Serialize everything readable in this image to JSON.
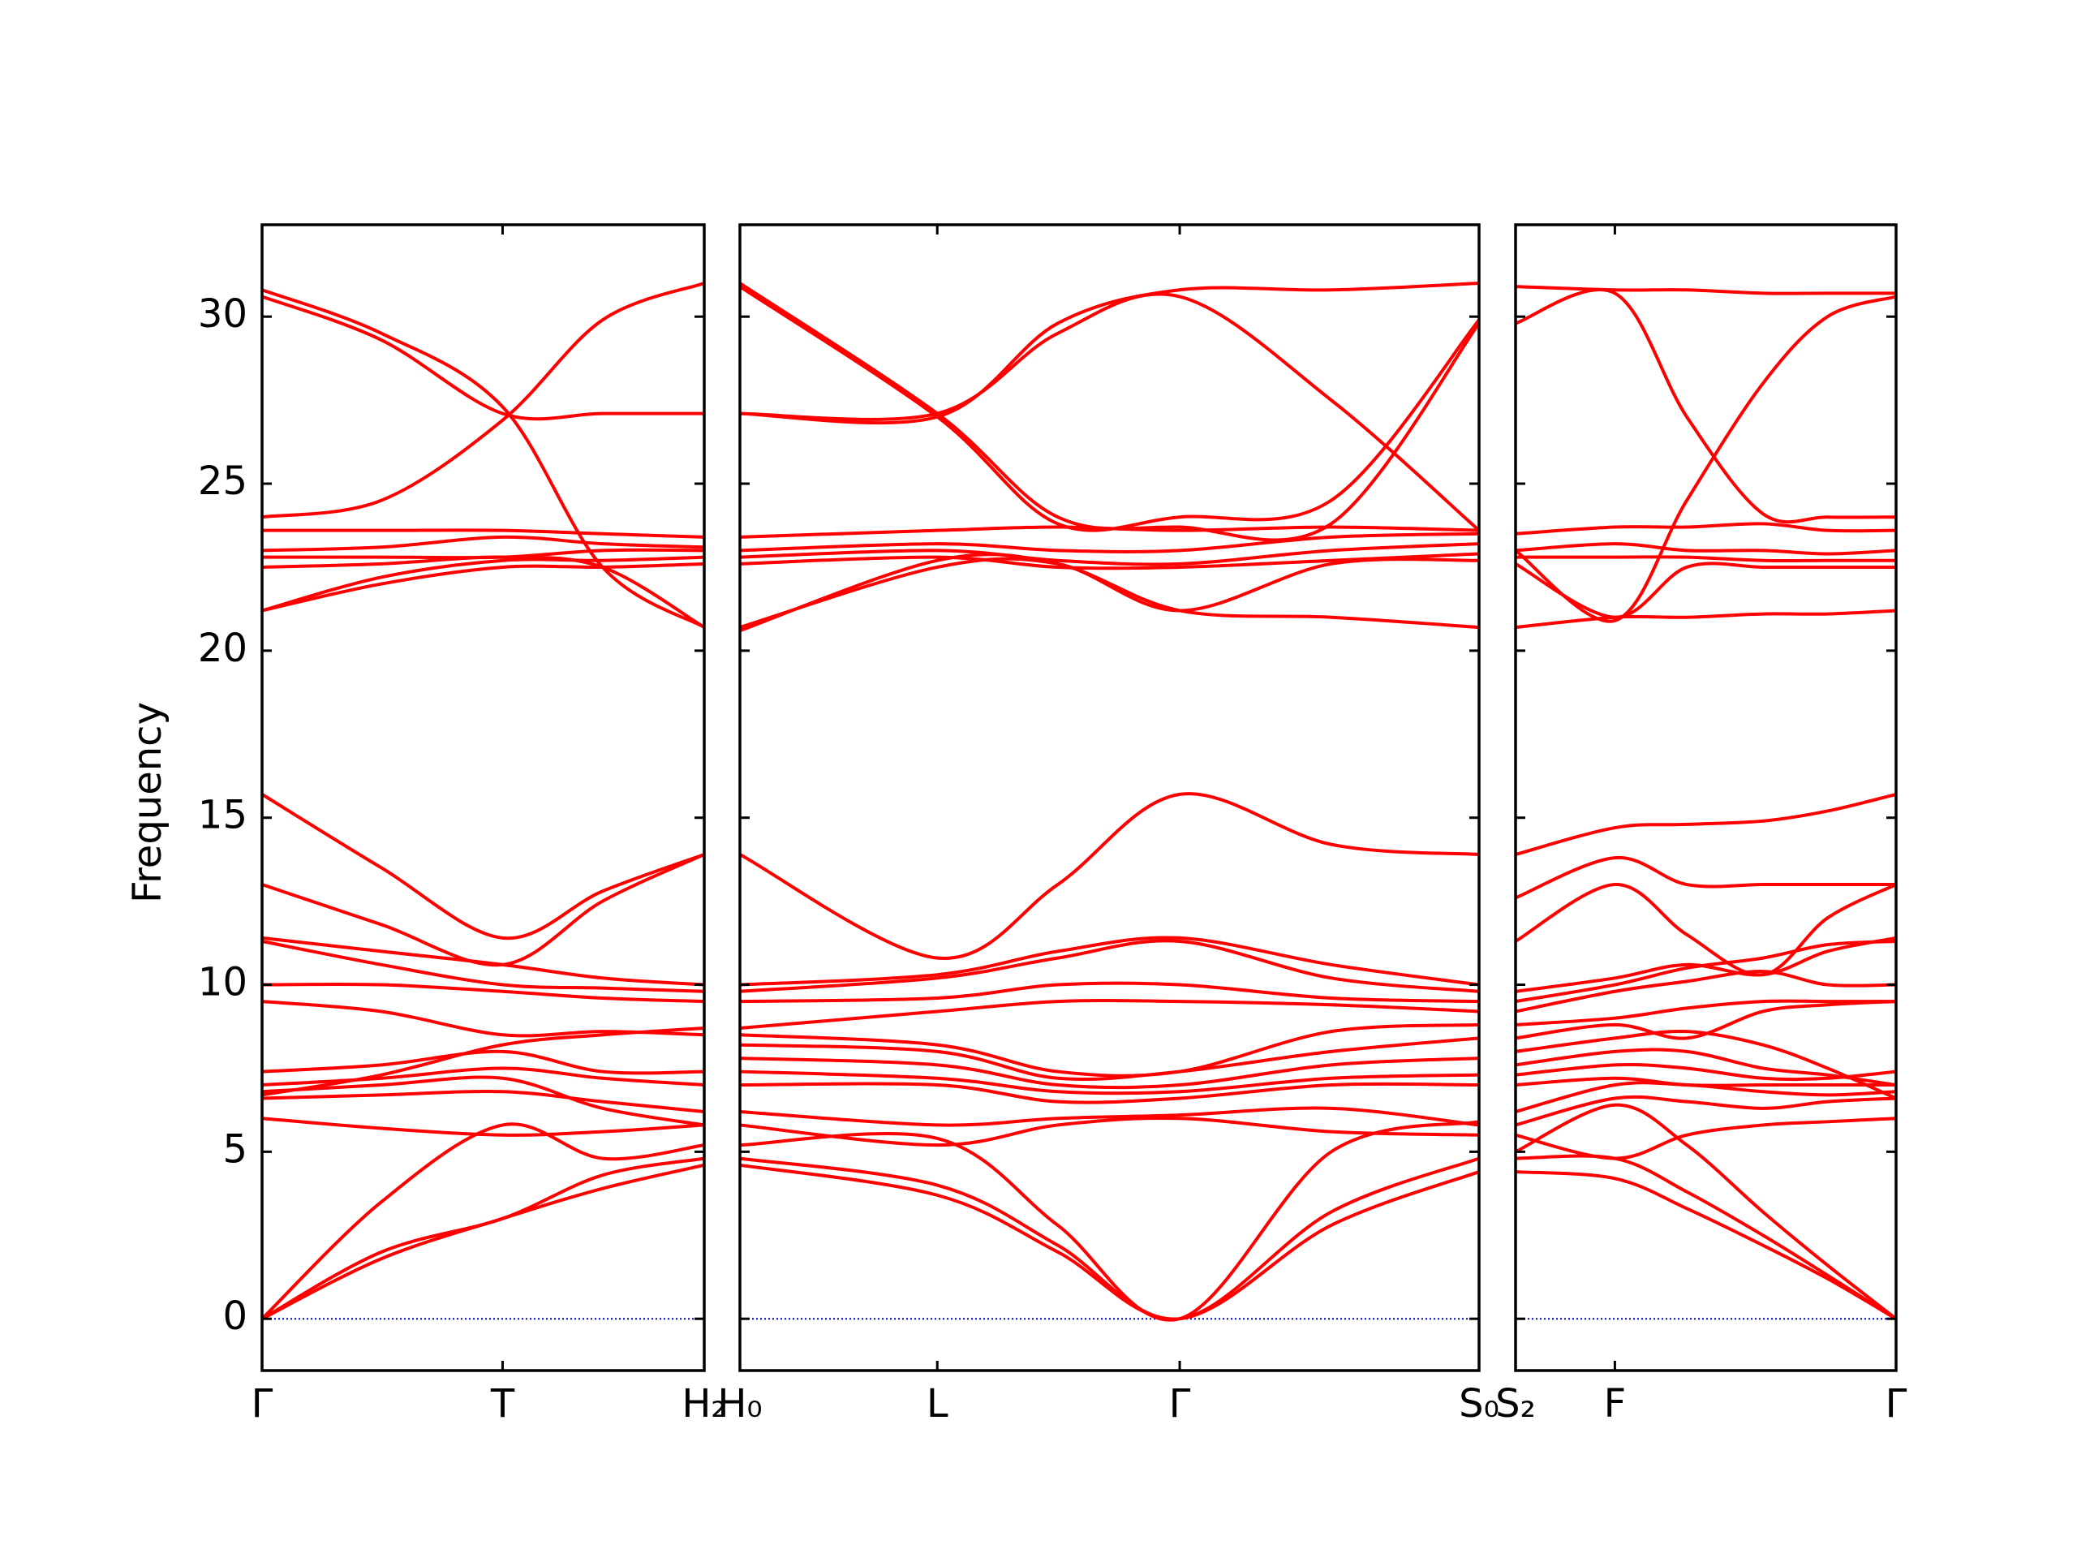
{
  "chart_data": [
    {
      "type": "line",
      "ylabel": "Frequency",
      "color": "#ff0000",
      "zero_line_color": "#0000cc",
      "xlim": [
        0,
        1
      ],
      "xticks": [
        {
          "value": 0,
          "label": "Γ"
        },
        {
          "value": 0.544,
          "label": "T"
        },
        {
          "value": 1,
          "label": "H₂"
        }
      ],
      "ylim": [
        -1.55,
        32.75
      ],
      "yticks": [
        0,
        5,
        10,
        15,
        20,
        25,
        30
      ],
      "x": [
        0,
        0.27,
        0.544,
        0.77,
        1
      ],
      "series": [
        {
          "values": [
            0,
            1.8,
            3.0,
            3.9,
            4.6
          ]
        },
        {
          "values": [
            0,
            2.0,
            3.0,
            4.3,
            4.8
          ]
        },
        {
          "values": [
            0,
            3.5,
            5.8,
            4.8,
            5.2
          ]
        },
        {
          "values": [
            6.0,
            5.7,
            5.5,
            5.6,
            5.8
          ]
        },
        {
          "values": [
            6.6,
            6.7,
            6.8,
            6.5,
            6.2
          ]
        },
        {
          "values": [
            6.8,
            7.0,
            7.2,
            6.3,
            5.8
          ]
        },
        {
          "values": [
            7.0,
            7.2,
            7.5,
            7.2,
            7.0
          ]
        },
        {
          "values": [
            7.4,
            7.6,
            8.0,
            7.4,
            7.4
          ]
        },
        {
          "values": [
            6.7,
            7.3,
            8.2,
            8.5,
            8.7
          ]
        },
        {
          "values": [
            9.5,
            9.2,
            8.5,
            8.6,
            8.5
          ]
        },
        {
          "values": [
            10.0,
            10.0,
            9.8,
            9.6,
            9.5
          ]
        },
        {
          "values": [
            11.3,
            10.6,
            10.0,
            9.9,
            9.8
          ]
        },
        {
          "values": [
            11.4,
            11.0,
            10.6,
            10.2,
            10.0
          ]
        },
        {
          "values": [
            13.0,
            11.8,
            10.6,
            12.5,
            13.9
          ]
        },
        {
          "values": [
            15.7,
            13.5,
            11.4,
            12.8,
            13.9
          ]
        },
        {
          "values": [
            21.2,
            22.0,
            22.5,
            22.5,
            22.6
          ]
        },
        {
          "values": [
            21.2,
            22.2,
            22.7,
            22.7,
            22.8
          ]
        },
        {
          "values": [
            22.5,
            22.6,
            22.8,
            22.5,
            20.7
          ]
        },
        {
          "values": [
            22.8,
            22.8,
            22.8,
            23.0,
            23.0
          ]
        },
        {
          "values": [
            23.0,
            23.1,
            23.4,
            23.2,
            23.1
          ]
        },
        {
          "values": [
            23.6,
            23.6,
            23.6,
            23.5,
            23.4
          ]
        },
        {
          "values": [
            24.0,
            24.5,
            26.9,
            29.9,
            31.0
          ]
        },
        {
          "values": [
            30.8,
            29.5,
            27.3,
            22.5,
            20.7
          ]
        },
        {
          "values": [
            30.6,
            29.3,
            27.1,
            27.1,
            27.1
          ]
        }
      ]
    },
    {
      "type": "line",
      "color": "#ff0000",
      "zero_line_color": "#0000cc",
      "xlim": [
        0,
        1
      ],
      "xticks": [
        {
          "value": 0,
          "label": "H₀"
        },
        {
          "value": 0.267,
          "label": "L"
        },
        {
          "value": 0.595,
          "label": "Γ"
        },
        {
          "value": 1,
          "label": "S₀"
        }
      ],
      "ylim": [
        -1.55,
        32.75
      ],
      "x": [
        0,
        0.267,
        0.43,
        0.595,
        0.8,
        1
      ],
      "series": [
        {
          "values": [
            4.6,
            3.7,
            2.0,
            0,
            2.8,
            4.4
          ]
        },
        {
          "values": [
            4.8,
            4.0,
            2.2,
            0,
            3.2,
            4.8
          ]
        },
        {
          "values": [
            5.2,
            5.4,
            2.8,
            0,
            5.0,
            5.9
          ]
        },
        {
          "values": [
            5.8,
            5.2,
            5.8,
            6.0,
            5.6,
            5.5
          ]
        },
        {
          "values": [
            6.2,
            5.8,
            6.0,
            6.1,
            6.3,
            5.8
          ]
        },
        {
          "values": [
            7.0,
            7.0,
            6.5,
            6.6,
            7.0,
            7.0
          ]
        },
        {
          "values": [
            7.4,
            7.2,
            6.8,
            6.8,
            7.2,
            7.3
          ]
        },
        {
          "values": [
            7.8,
            7.6,
            7.0,
            7.0,
            7.6,
            7.8
          ]
        },
        {
          "values": [
            8.2,
            8.0,
            7.2,
            7.4,
            8.0,
            8.4
          ]
        },
        {
          "values": [
            8.5,
            8.2,
            7.4,
            7.4,
            8.6,
            8.8
          ]
        },
        {
          "values": [
            8.7,
            9.2,
            9.5,
            9.5,
            9.4,
            9.2
          ]
        },
        {
          "values": [
            9.5,
            9.6,
            10.0,
            10.0,
            9.6,
            9.5
          ]
        },
        {
          "values": [
            9.8,
            10.2,
            10.8,
            11.3,
            10.2,
            9.8
          ]
        },
        {
          "values": [
            10.0,
            10.3,
            11.0,
            11.4,
            10.6,
            10.0
          ]
        },
        {
          "values": [
            13.9,
            10.8,
            13.0,
            15.7,
            14.2,
            13.9
          ]
        },
        {
          "values": [
            20.7,
            22.5,
            22.6,
            21.2,
            22.6,
            22.7
          ]
        },
        {
          "values": [
            20.6,
            22.7,
            22.6,
            21.2,
            21.0,
            20.7
          ]
        },
        {
          "values": [
            22.6,
            22.8,
            22.5,
            22.5,
            22.7,
            22.9
          ]
        },
        {
          "values": [
            22.8,
            23.0,
            22.7,
            22.6,
            23.0,
            23.2
          ]
        },
        {
          "values": [
            23.0,
            23.2,
            23.0,
            23.0,
            23.4,
            23.5
          ]
        },
        {
          "values": [
            23.4,
            23.6,
            23.7,
            23.6,
            23.7,
            23.6
          ]
        },
        {
          "values": [
            31.0,
            27.1,
            24.0,
            23.7,
            23.8,
            29.8
          ]
        },
        {
          "values": [
            30.9,
            27.0,
            23.8,
            24.0,
            24.5,
            29.9
          ]
        },
        {
          "values": [
            27.1,
            27.1,
            29.5,
            30.6,
            27.5,
            23.6
          ]
        },
        {
          "values": [
            27.1,
            27.0,
            29.8,
            30.8,
            30.8,
            31.0
          ]
        }
      ]
    },
    {
      "type": "line",
      "color": "#ff0000",
      "zero_line_color": "#0000cc",
      "xlim": [
        0,
        1
      ],
      "xticks": [
        {
          "value": 0,
          "label": "S₂"
        },
        {
          "value": 0.261,
          "label": "F"
        },
        {
          "value": 1,
          "label": "Γ"
        }
      ],
      "ylim": [
        -1.55,
        32.75
      ],
      "x": [
        0,
        0.261,
        0.45,
        0.65,
        0.82,
        1
      ],
      "series": [
        {
          "values": [
            4.4,
            4.2,
            3.3,
            2.2,
            1.2,
            0
          ]
        },
        {
          "values": [
            4.8,
            4.8,
            3.8,
            2.5,
            1.3,
            0
          ]
        },
        {
          "values": [
            5.0,
            6.4,
            5.2,
            3.2,
            1.6,
            0
          ]
        },
        {
          "values": [
            5.5,
            4.8,
            5.5,
            5.8,
            5.9,
            6.0
          ]
        },
        {
          "values": [
            5.8,
            6.6,
            6.5,
            6.3,
            6.5,
            6.6
          ]
        },
        {
          "values": [
            6.2,
            7.0,
            7.0,
            6.8,
            6.7,
            6.8
          ]
        },
        {
          "values": [
            7.0,
            7.2,
            7.0,
            7.0,
            7.0,
            7.0
          ]
        },
        {
          "values": [
            7.3,
            7.6,
            7.5,
            7.2,
            7.2,
            7.4
          ]
        },
        {
          "values": [
            7.6,
            8.0,
            8.0,
            7.5,
            7.3,
            7.0
          ]
        },
        {
          "values": [
            8.0,
            8.4,
            8.6,
            8.2,
            7.5,
            6.6
          ]
        },
        {
          "values": [
            8.4,
            8.8,
            8.4,
            9.2,
            9.4,
            9.5
          ]
        },
        {
          "values": [
            8.8,
            9.0,
            9.3,
            9.5,
            9.5,
            9.5
          ]
        },
        {
          "values": [
            9.2,
            9.8,
            10.1,
            10.4,
            10.0,
            10.0
          ]
        },
        {
          "values": [
            9.5,
            10.0,
            10.5,
            10.8,
            11.2,
            11.3
          ]
        },
        {
          "values": [
            9.8,
            10.2,
            10.6,
            10.3,
            11.0,
            11.4
          ]
        },
        {
          "values": [
            11.3,
            13.0,
            11.5,
            10.3,
            12.0,
            13.0
          ]
        },
        {
          "values": [
            12.6,
            13.8,
            13.0,
            13.0,
            13.0,
            13.0
          ]
        },
        {
          "values": [
            13.9,
            14.7,
            14.8,
            14.9,
            15.2,
            15.7
          ]
        },
        {
          "values": [
            20.7,
            21.0,
            21.0,
            21.1,
            21.1,
            21.2
          ]
        },
        {
          "values": [
            22.6,
            21.0,
            22.5,
            22.5,
            22.5,
            22.5
          ]
        },
        {
          "values": [
            22.8,
            22.8,
            22.8,
            22.7,
            22.7,
            22.7
          ]
        },
        {
          "values": [
            23.0,
            23.2,
            23.0,
            23.0,
            22.9,
            23.0
          ]
        },
        {
          "values": [
            23.5,
            23.7,
            23.7,
            23.8,
            23.6,
            23.6
          ]
        },
        {
          "values": [
            29.8,
            30.7,
            27.0,
            24.1,
            24.0,
            24.0
          ]
        },
        {
          "values": [
            30.9,
            30.8,
            30.8,
            30.7,
            30.7,
            30.7
          ]
        },
        {
          "values": [
            23.0,
            20.9,
            24.5,
            28.0,
            30.0,
            30.6
          ]
        }
      ]
    }
  ]
}
